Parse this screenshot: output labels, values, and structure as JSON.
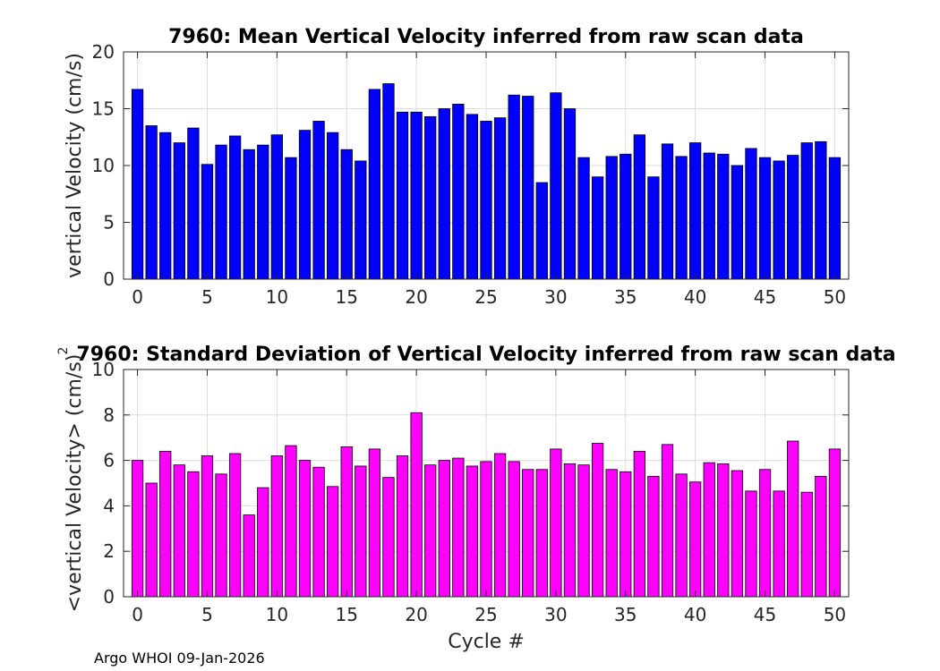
{
  "footer": "Argo WHOI 09-Jan-2026",
  "shared_xlabel": "Cycle #",
  "chart_data": [
    {
      "type": "bar",
      "title": "7960: Mean Vertical Velocity inferred from raw scan data",
      "xlabel": "",
      "ylabel": "vertical Velocity (cm/s)",
      "xlim": [
        -1,
        51
      ],
      "ylim": [
        0,
        20
      ],
      "xticks": [
        0,
        5,
        10,
        15,
        20,
        25,
        30,
        35,
        40,
        45,
        50
      ],
      "yticks": [
        0,
        5,
        10,
        15,
        20
      ],
      "grid": true,
      "bar_color": "#0000ff",
      "x": [
        0,
        1,
        2,
        3,
        4,
        5,
        6,
        7,
        8,
        9,
        10,
        11,
        12,
        13,
        14,
        15,
        16,
        17,
        18,
        19,
        20,
        21,
        22,
        23,
        24,
        25,
        26,
        27,
        28,
        29,
        30,
        31,
        32,
        33,
        34,
        35,
        36,
        37,
        38,
        39,
        40,
        41,
        42,
        43,
        44,
        45,
        46,
        47,
        48,
        49,
        50
      ],
      "values": [
        16.7,
        13.5,
        12.9,
        12.0,
        13.3,
        10.1,
        11.8,
        12.6,
        11.4,
        11.8,
        12.7,
        10.7,
        13.1,
        13.9,
        12.9,
        11.4,
        10.4,
        16.7,
        17.2,
        14.7,
        14.7,
        14.3,
        15.0,
        15.4,
        14.5,
        13.9,
        14.2,
        16.2,
        16.1,
        8.5,
        16.4,
        15.0,
        10.7,
        9.0,
        10.8,
        11.0,
        12.7,
        9.0,
        11.9,
        10.8,
        12.0,
        11.1,
        11.0,
        10.0,
        11.5,
        10.7,
        10.4,
        10.9,
        12.0,
        12.1,
        10.7
      ]
    },
    {
      "type": "bar",
      "title": "7960: Standard Deviation of Vertical Velocity inferred from raw scan data",
      "xlabel": "Cycle #",
      "ylabel": "<vertical Velocity> (cm/s)",
      "ylabel_superscript": "2",
      "xlim": [
        -1,
        51
      ],
      "ylim": [
        0,
        10
      ],
      "xticks": [
        0,
        5,
        10,
        15,
        20,
        25,
        30,
        35,
        40,
        45,
        50
      ],
      "yticks": [
        0,
        2,
        4,
        6,
        8,
        10
      ],
      "grid": true,
      "bar_color": "#ff00ff",
      "x": [
        0,
        1,
        2,
        3,
        4,
        5,
        6,
        7,
        8,
        9,
        10,
        11,
        12,
        13,
        14,
        15,
        16,
        17,
        18,
        19,
        20,
        21,
        22,
        23,
        24,
        25,
        26,
        27,
        28,
        29,
        30,
        31,
        32,
        33,
        34,
        35,
        36,
        37,
        38,
        39,
        40,
        41,
        42,
        43,
        44,
        45,
        46,
        47,
        48,
        49,
        50
      ],
      "values": [
        6.0,
        5.0,
        6.4,
        5.8,
        5.5,
        6.2,
        5.4,
        6.3,
        3.6,
        4.8,
        6.2,
        6.65,
        6.0,
        5.7,
        4.85,
        6.6,
        5.75,
        6.5,
        5.25,
        6.2,
        8.1,
        5.8,
        6.0,
        6.1,
        5.75,
        5.95,
        6.3,
        5.95,
        5.6,
        5.6,
        6.5,
        5.85,
        5.8,
        6.75,
        5.6,
        5.5,
        6.4,
        5.3,
        6.7,
        5.4,
        5.05,
        5.9,
        5.85,
        5.55,
        4.65,
        5.6,
        4.65,
        6.85,
        4.6,
        5.3,
        6.5
      ]
    }
  ]
}
